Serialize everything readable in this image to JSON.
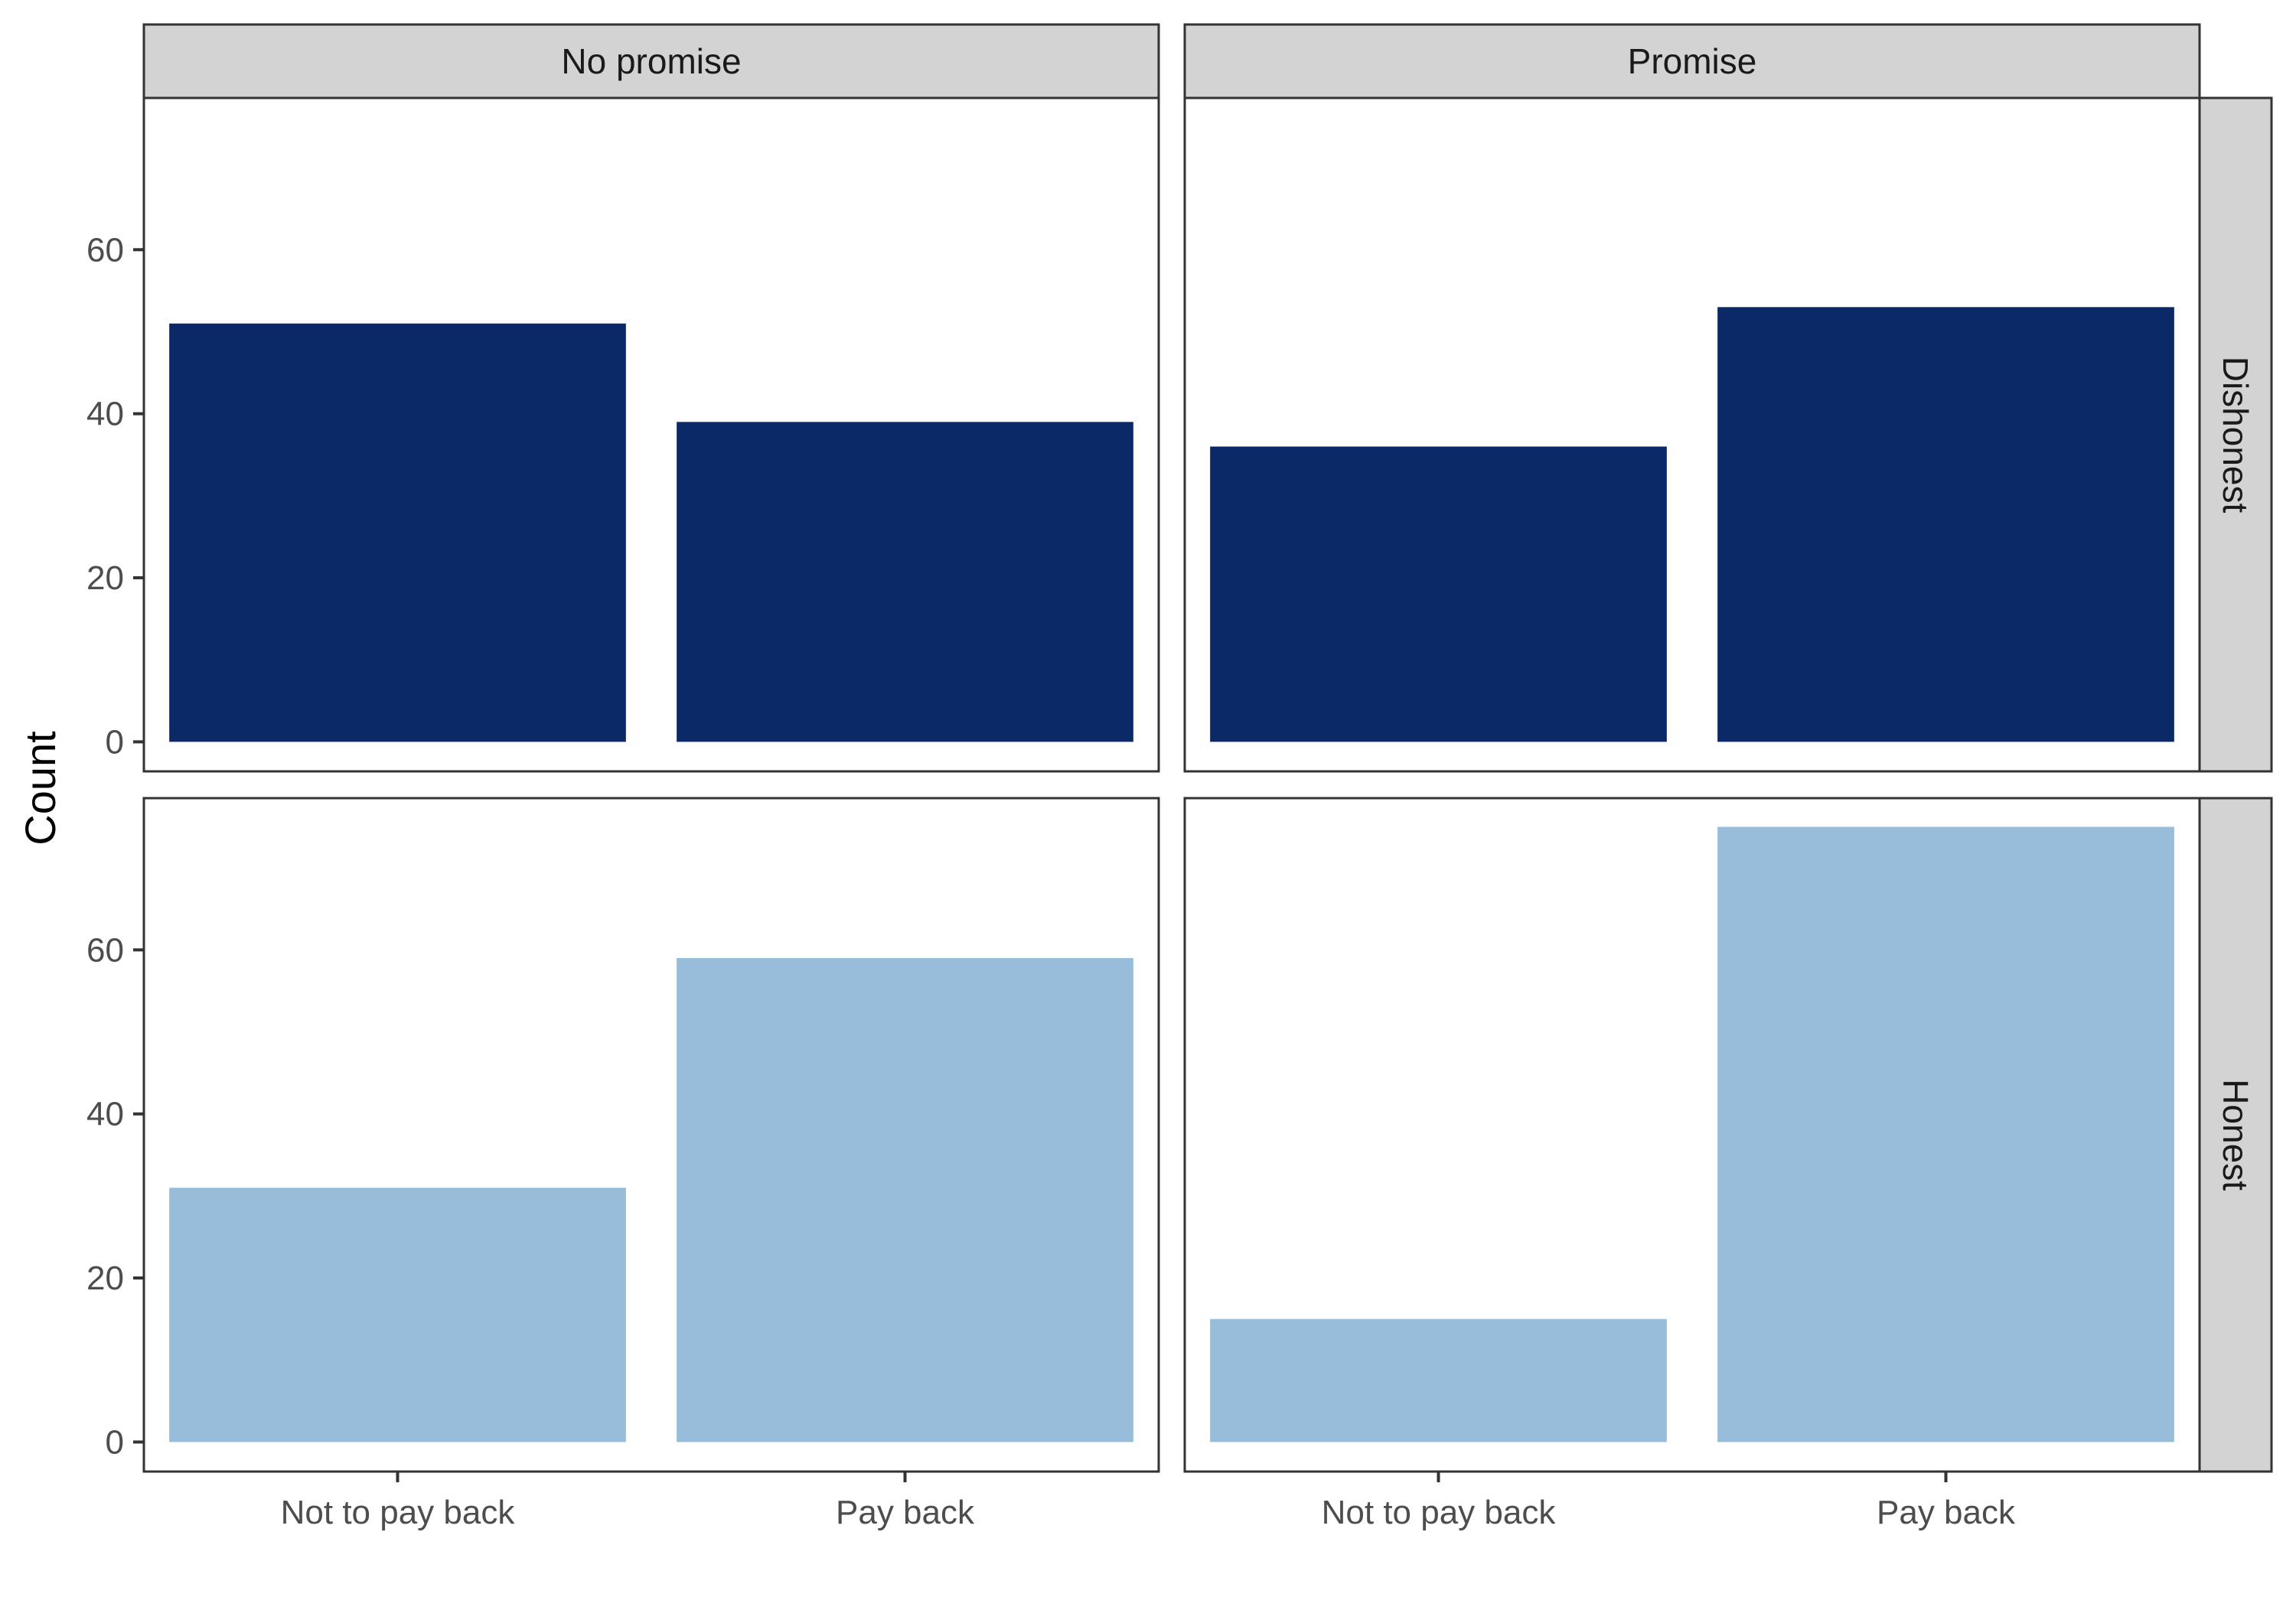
{
  "chart_data": {
    "type": "bar",
    "ylabel": "Count",
    "xlabel": "",
    "ylim": [
      -3.6,
      78.5
    ],
    "yticks": [
      0,
      20,
      40,
      60
    ],
    "categories": [
      "Not to pay back",
      "Pay back"
    ],
    "col_facets": [
      "No promise",
      "Promise"
    ],
    "row_facets": [
      "Dishonest",
      "Honest"
    ],
    "colors": {
      "Dishonest": "#0a2966",
      "Honest": "#97bddb"
    },
    "grid": false,
    "legend": "none",
    "panels": [
      {
        "col": "No promise",
        "row": "Dishonest",
        "values": [
          51,
          39
        ]
      },
      {
        "col": "Promise",
        "row": "Dishonest",
        "values": [
          36,
          53
        ]
      },
      {
        "col": "No promise",
        "row": "Honest",
        "values": [
          31,
          59
        ]
      },
      {
        "col": "Promise",
        "row": "Honest",
        "values": [
          15,
          75
        ]
      }
    ]
  }
}
